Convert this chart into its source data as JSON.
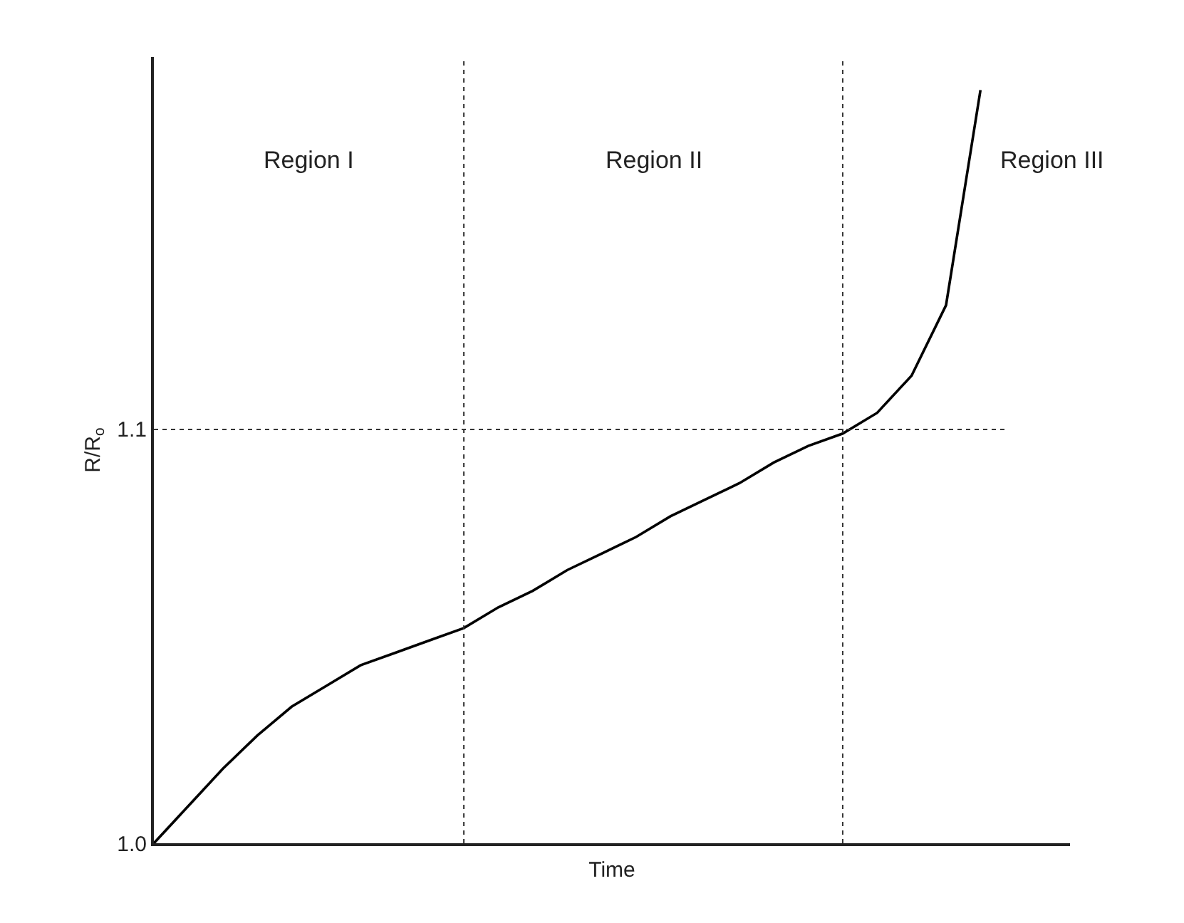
{
  "chart_data": {
    "type": "line",
    "xlabel": "Time",
    "ylabel": "R/R$_{o}$",
    "categories": [
      null,
      null,
      null,
      null,
      null,
      null,
      null,
      null,
      null,
      null,
      null,
      null,
      null,
      null,
      null,
      null,
      null,
      null,
      null,
      null,
      null,
      null,
      null,
      null,
      null
    ],
    "series": [
      {
        "color": "#000000",
        "values": [
          1.0,
          1.009,
          1.018,
          1.026,
          1.033,
          1.038,
          1.043,
          1.046,
          1.049,
          1.052,
          1.057,
          1.061,
          1.066,
          1.07,
          1.074,
          1.079,
          1.083,
          1.087,
          1.092,
          1.096,
          1.099,
          1.104,
          1.113,
          1.13,
          1.182
        ]
      }
    ],
    "ylim": [
      1.0,
      1.19
    ],
    "yticks": [
      {
        "value": 1.0,
        "label": "1.0"
      },
      1.1
    ],
    "tick_labels": "y",
    "marker": "none",
    "line_style": "solid",
    "ref_lines": [
      {
        "axis": "y",
        "value": 1.1,
        "line_style": "dotted"
      }
    ],
    "annotations": [
      "Region I",
      "Region II",
      "Region III"
    ]
  }
}
